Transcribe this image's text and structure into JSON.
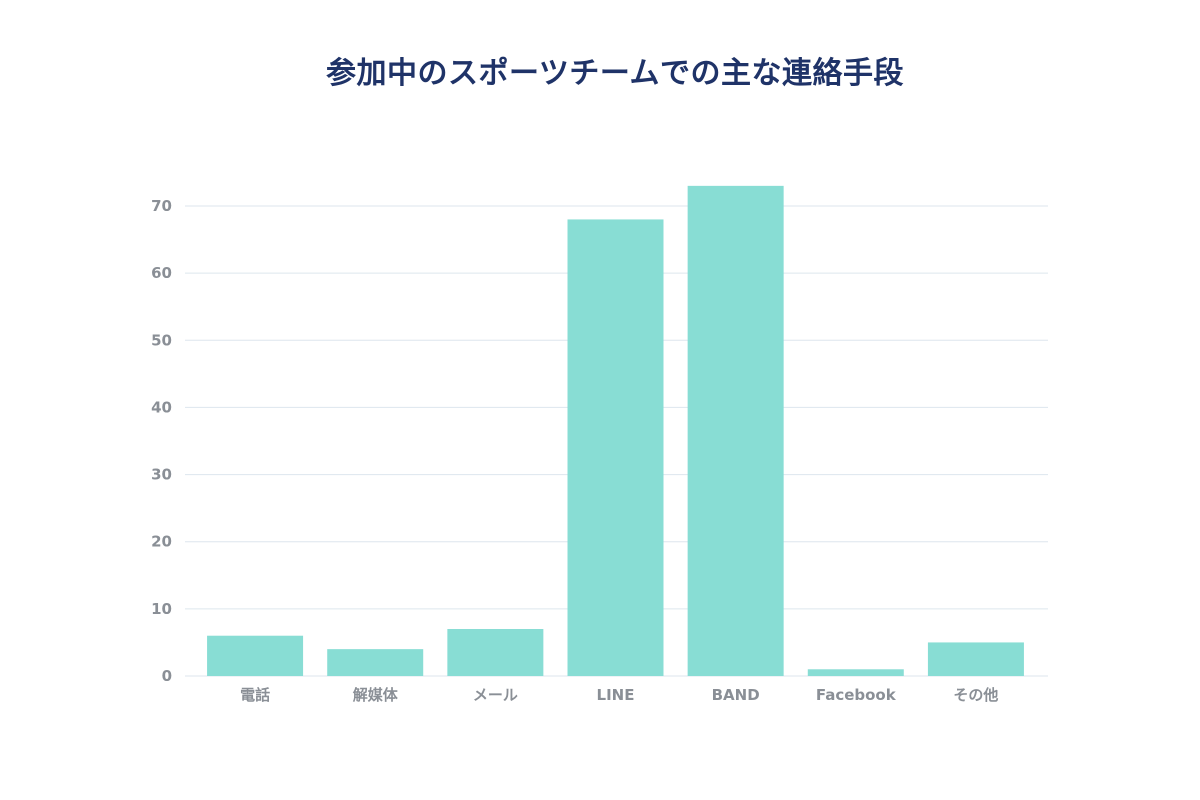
{
  "chart_data": {
    "type": "bar",
    "title": "参加中のスポーツチームでの主な連絡手段",
    "xlabel": "",
    "ylabel": "",
    "categories": [
      "電話",
      "解媒体",
      "メール",
      "LINE",
      "BAND",
      "Facebook",
      "その他"
    ],
    "values": [
      6,
      4,
      7,
      68,
      73,
      1,
      5
    ],
    "ylim": [
      0,
      70
    ],
    "yticks": [
      0,
      10,
      20,
      30,
      40,
      50,
      60,
      70
    ],
    "grid": true,
    "legend": "none",
    "bar_color": "#88ddd4",
    "grid_color": "#dde6ee",
    "title_color": "#1f3368",
    "tick_color": "#8a8f96"
  }
}
